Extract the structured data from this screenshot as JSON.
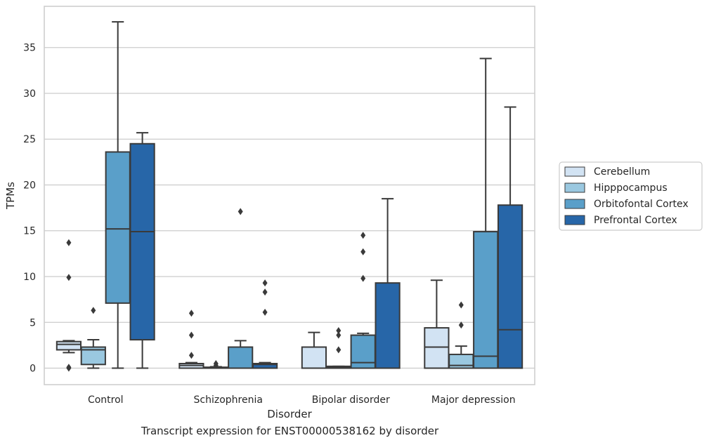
{
  "caption": "Transcript expression for ENST00000538162 by disorder",
  "chart_data": {
    "type": "box",
    "xlabel": "Disorder",
    "ylabel": "TPMs",
    "ylim": [
      -1.8,
      39.5
    ],
    "yticks": [
      0,
      5,
      10,
      15,
      20,
      25,
      30,
      35
    ],
    "grid": true,
    "legend_position": "right",
    "categories": [
      "Control",
      "Schizophrenia",
      "Bipolar disorder",
      "Major depression"
    ],
    "series": [
      {
        "name": "Cerebellum",
        "color": "#d2e3f3",
        "boxes": [
          {
            "q1": 2.0,
            "median": 2.6,
            "q3": 2.9,
            "whislo": 1.7,
            "whishi": 3.0,
            "fliers": [
              13.7,
              9.9,
              0.1,
              0.0
            ]
          },
          {
            "q1": 0.0,
            "median": 0.3,
            "q3": 0.5,
            "whislo": 0.0,
            "whishi": 0.6,
            "fliers": [
              6.0,
              3.6,
              1.4
            ]
          },
          {
            "q1": 0.0,
            "median": 0.0,
            "q3": 2.3,
            "whislo": 0.0,
            "whishi": 3.9,
            "fliers": []
          },
          {
            "q1": 0.0,
            "median": 2.3,
            "q3": 4.4,
            "whislo": 0.0,
            "whishi": 9.6,
            "fliers": []
          }
        ]
      },
      {
        "name": "Hipppocampus",
        "color": "#9ac8e0",
        "boxes": [
          {
            "q1": 0.4,
            "median": 2.0,
            "q3": 2.3,
            "whislo": 0.0,
            "whishi": 3.1,
            "fliers": [
              6.3
            ]
          },
          {
            "q1": 0.0,
            "median": 0.05,
            "q3": 0.1,
            "whislo": 0.0,
            "whishi": 0.15,
            "fliers": [
              0.5,
              0.3
            ]
          },
          {
            "q1": 0.0,
            "median": 0.1,
            "q3": 0.2,
            "whislo": 0.0,
            "whishi": 0.2,
            "fliers": [
              4.1,
              3.6,
              2.0
            ]
          },
          {
            "q1": 0.0,
            "median": 0.3,
            "q3": 1.5,
            "whislo": 0.0,
            "whishi": 2.4,
            "fliers": [
              6.9,
              4.7
            ]
          }
        ]
      },
      {
        "name": "Orbitofontal Cortex",
        "color": "#5a9fc9",
        "boxes": [
          {
            "q1": 7.1,
            "median": 15.2,
            "q3": 23.6,
            "whislo": 0.0,
            "whishi": 37.8,
            "fliers": []
          },
          {
            "q1": 0.0,
            "median": 0.0,
            "q3": 2.3,
            "whislo": 0.0,
            "whishi": 3.0,
            "fliers": [
              17.1
            ]
          },
          {
            "q1": 0.0,
            "median": 0.6,
            "q3": 3.6,
            "whislo": 0.0,
            "whishi": 3.8,
            "fliers": [
              14.5,
              12.7,
              9.8
            ]
          },
          {
            "q1": 0.0,
            "median": 1.3,
            "q3": 14.9,
            "whislo": 0.0,
            "whishi": 33.8,
            "fliers": []
          }
        ]
      },
      {
        "name": "Prefrontal Cortex",
        "color": "#2766a8",
        "boxes": [
          {
            "q1": 3.1,
            "median": 14.9,
            "q3": 24.5,
            "whislo": 0.0,
            "whishi": 25.7,
            "fliers": []
          },
          {
            "q1": 0.0,
            "median": 0.4,
            "q3": 0.5,
            "whislo": 0.0,
            "whishi": 0.6,
            "fliers": [
              9.3,
              8.3,
              6.1
            ]
          },
          {
            "q1": 0.0,
            "median": 0.0,
            "q3": 9.3,
            "whislo": 0.0,
            "whishi": 18.5,
            "fliers": []
          },
          {
            "q1": 0.0,
            "median": 4.2,
            "q3": 17.8,
            "whislo": 0.0,
            "whishi": 28.5,
            "fliers": []
          }
        ]
      }
    ]
  }
}
